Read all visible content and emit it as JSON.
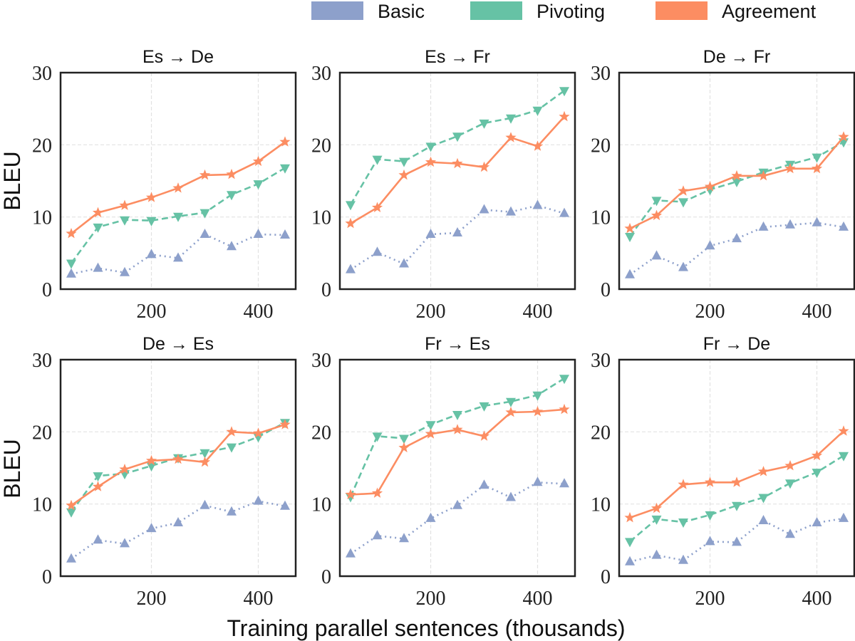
{
  "chart_data": {
    "type": "line",
    "xlabel": "Training parallel sentences (thousands)",
    "ylabel": "BLEU",
    "xlim": [
      30,
      470
    ],
    "ylim": [
      0,
      30
    ],
    "xticks": [
      200,
      400
    ],
    "yticks": [
      0,
      10,
      20,
      30
    ],
    "grid": true,
    "legend_placement": "top",
    "x": [
      50,
      100,
      150,
      200,
      250,
      300,
      350,
      400,
      450
    ],
    "series_styles": [
      {
        "name": "Basic",
        "color": "#8da0cb",
        "line": "dotted",
        "marker": "triangle-up"
      },
      {
        "name": "Pivoting",
        "color": "#66c2a5",
        "line": "dashed",
        "marker": "triangle-down"
      },
      {
        "name": "Agreement",
        "color": "#fc8d62",
        "line": "solid",
        "marker": "star"
      }
    ],
    "panels": [
      {
        "title": "Es → De",
        "series": [
          {
            "name": "Basic",
            "values": [
              2.1,
              2.9,
              2.3,
              4.8,
              4.3,
              7.6,
              5.9,
              7.6,
              7.5
            ]
          },
          {
            "name": "Pivoting",
            "values": [
              3.6,
              8.6,
              9.6,
              9.5,
              10.1,
              10.6,
              13.1,
              14.6,
              16.8
            ]
          },
          {
            "name": "Agreement",
            "values": [
              7.7,
              10.6,
              11.6,
              12.7,
              14.0,
              15.8,
              15.9,
              17.7,
              20.4
            ]
          }
        ]
      },
      {
        "title": "Es → Fr",
        "series": [
          {
            "name": "Basic",
            "values": [
              2.7,
              5.1,
              3.5,
              7.6,
              7.8,
              11.0,
              10.7,
              11.6,
              10.5
            ]
          },
          {
            "name": "Pivoting",
            "values": [
              11.7,
              18.0,
              17.7,
              19.8,
              21.2,
              23.0,
              23.7,
              24.8,
              27.5
            ]
          },
          {
            "name": "Agreement",
            "values": [
              9.1,
              11.3,
              15.8,
              17.6,
              17.4,
              16.9,
              21.0,
              19.8,
              23.9
            ]
          }
        ]
      },
      {
        "title": "De → Fr",
        "series": [
          {
            "name": "Basic",
            "values": [
              2.0,
              4.6,
              3.0,
              6.0,
              7.0,
              8.6,
              8.9,
              9.2,
              8.6
            ]
          },
          {
            "name": "Pivoting",
            "values": [
              7.3,
              12.3,
              12.1,
              13.8,
              14.9,
              16.2,
              17.3,
              18.3,
              20.4
            ]
          },
          {
            "name": "Agreement",
            "values": [
              8.4,
              10.2,
              13.6,
              14.2,
              15.7,
              15.7,
              16.7,
              16.7,
              21.1
            ]
          }
        ]
      },
      {
        "title": "De → Es",
        "series": [
          {
            "name": "Basic",
            "values": [
              2.4,
              5.0,
              4.5,
              6.6,
              7.4,
              9.8,
              8.9,
              10.4,
              9.7
            ]
          },
          {
            "name": "Pivoting",
            "values": [
              8.9,
              13.9,
              14.2,
              15.3,
              16.4,
              17.1,
              17.9,
              19.3,
              21.3
            ]
          },
          {
            "name": "Agreement",
            "values": [
              9.8,
              12.4,
              14.8,
              16.0,
              16.2,
              15.8,
              20.0,
              19.8,
              21.0
            ]
          }
        ]
      },
      {
        "title": "Fr → Es",
        "series": [
          {
            "name": "Basic",
            "values": [
              3.1,
              5.6,
              5.2,
              8.0,
              9.8,
              12.6,
              10.9,
              13.0,
              12.8
            ]
          },
          {
            "name": "Pivoting",
            "values": [
              11.0,
              19.4,
              19.1,
              21.0,
              22.4,
              23.6,
              24.2,
              25.1,
              27.4
            ]
          },
          {
            "name": "Agreement",
            "values": [
              11.3,
              11.5,
              17.8,
              19.7,
              20.3,
              19.4,
              22.7,
              22.8,
              23.1
            ]
          }
        ]
      },
      {
        "title": "Fr → De",
        "series": [
          {
            "name": "Basic",
            "values": [
              2.0,
              2.9,
              2.2,
              4.8,
              4.7,
              7.7,
              5.8,
              7.4,
              8.0
            ]
          },
          {
            "name": "Pivoting",
            "values": [
              4.8,
              7.9,
              7.5,
              8.5,
              9.8,
              10.9,
              12.9,
              14.4,
              16.7
            ]
          },
          {
            "name": "Agreement",
            "values": [
              8.1,
              9.4,
              12.7,
              13.0,
              13.0,
              14.5,
              15.3,
              16.7,
              20.1
            ]
          }
        ]
      }
    ]
  }
}
